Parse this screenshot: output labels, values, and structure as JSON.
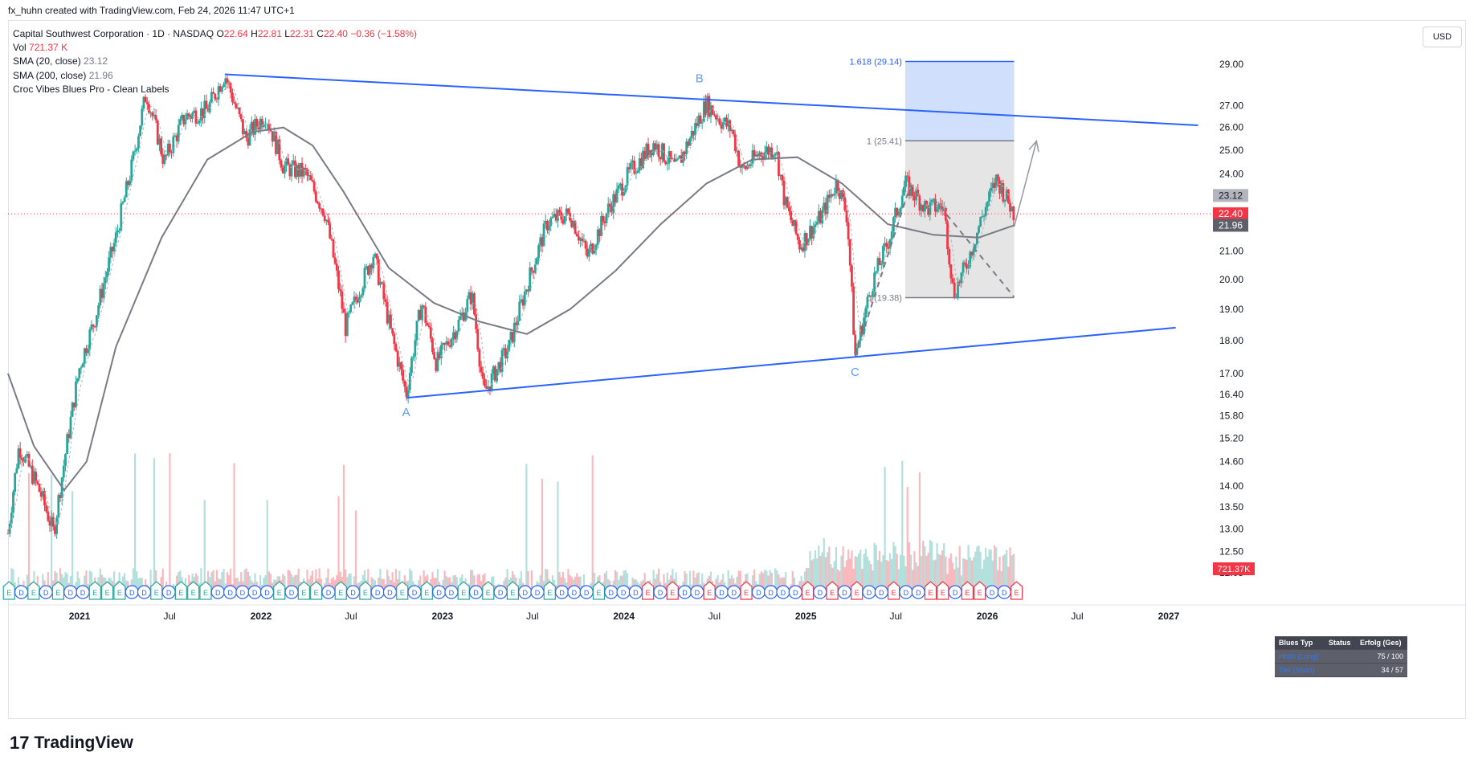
{
  "header": {
    "credit": "fx_huhn created with TradingView.com, Feb 24, 2026 11:47 UTC+1"
  },
  "legend": {
    "symbol": "Capital Southwest Corporation · 1D · NASDAQ",
    "o_label": "O",
    "o": "22.64",
    "h_label": "H",
    "h": "22.81",
    "l_label": "L",
    "l": "22.31",
    "c_label": "C",
    "c": "22.40",
    "change": "−0.36 (−1.58%)",
    "vol_label": "Vol",
    "vol": "721.37 K",
    "sma20_label": "SMA (20, close)",
    "sma20": "23.12",
    "sma200_label": "SMA (200, close)",
    "sma200": "21.96",
    "indicator": "Croc Vibes Blues Pro - Clean Labels"
  },
  "currency": "USD",
  "footer": {
    "logo_mark": "17",
    "logo_word": "TradingView"
  },
  "stats_table": {
    "headers": [
      "Blues Typ",
      "Status",
      "Erfolg (Ges)"
    ],
    "rows": [
      {
        "type": "Hoch (Long)",
        "status": "",
        "value": "75 / 100"
      },
      {
        "type": "Tief (Short)",
        "status": "",
        "value": "34 / 57"
      }
    ]
  },
  "colors": {
    "up": "#26a69a",
    "down": "#f23645",
    "trendline": "#2962ff",
    "sma": "#787b86",
    "fib_fill": "#bbd1fb",
    "box_fill": "#e0e0e0",
    "wave_label": "#5b9cf6"
  },
  "chart_data": {
    "type": "candlestick",
    "price_axis": {
      "scale": "log",
      "range": [
        12.0,
        31.5
      ],
      "ticks": [
        12.05,
        12.5,
        13.0,
        13.5,
        14.0,
        14.6,
        15.2,
        15.8,
        16.4,
        17.0,
        18.0,
        19.0,
        20.0,
        21.0,
        22.0,
        23.0,
        24.0,
        25.0,
        26.0,
        27.0,
        29.0
      ]
    },
    "price_tick_labels": [
      "12.05",
      "12.50",
      "13.00",
      "13.50",
      "14.00",
      "14.60",
      "15.20",
      "15.80",
      "16.40",
      "17.00",
      "18.00",
      "19.00",
      "20.00",
      "21.00",
      "22.00",
      "23.00",
      "24.00",
      "25.00",
      "26.00",
      "27.00",
      "29.00"
    ],
    "time_axis": {
      "labels": [
        "2021",
        "Jul",
        "2022",
        "Jul",
        "2023",
        "Jul",
        "2024",
        "Jul",
        "2025",
        "Jul",
        "2026",
        "Jul",
        "2027"
      ],
      "dates": [
        "2021-01-01",
        "2021-07-01",
        "2022-01-01",
        "2022-07-01",
        "2023-01-01",
        "2023-07-01",
        "2024-01-01",
        "2024-07-01",
        "2025-01-01",
        "2025-07-01",
        "2026-01-01",
        "2026-07-01",
        "2027-01-01"
      ],
      "range": [
        "2020-08-10",
        "2027-03-10"
      ]
    },
    "price_path": [
      [
        "2020-08-10",
        12.9
      ],
      [
        "2020-09-01",
        15.0
      ],
      [
        "2020-10-15",
        13.8
      ],
      [
        "2020-11-10",
        12.9
      ],
      [
        "2020-12-01",
        14.6
      ],
      [
        "2021-01-01",
        17.2
      ],
      [
        "2021-02-01",
        18.7
      ],
      [
        "2021-03-15",
        21.5
      ],
      [
        "2021-04-15",
        24.2
      ],
      [
        "2021-05-15",
        27.6
      ],
      [
        "2021-06-20",
        24.5
      ],
      [
        "2021-08-01",
        26.5
      ],
      [
        "2021-09-15",
        26.8
      ],
      [
        "2021-10-20",
        28.5
      ],
      [
        "2021-12-01",
        25.5
      ],
      [
        "2022-01-10",
        26.6
      ],
      [
        "2022-02-15",
        24.3
      ],
      [
        "2022-04-01",
        24.0
      ],
      [
        "2022-05-10",
        22.4
      ],
      [
        "2022-06-20",
        18.4
      ],
      [
        "2022-08-15",
        20.9
      ],
      [
        "2022-09-20",
        18.2
      ],
      [
        "2022-10-20",
        16.4
      ],
      [
        "2022-11-20",
        19.2
      ],
      [
        "2022-12-20",
        17.3
      ],
      [
        "2023-02-01",
        18.5
      ],
      [
        "2023-03-01",
        19.5
      ],
      [
        "2023-03-25",
        16.4
      ],
      [
        "2023-05-15",
        17.8
      ],
      [
        "2023-06-20",
        19.8
      ],
      [
        "2023-08-01",
        22.1
      ],
      [
        "2023-09-15",
        22.4
      ],
      [
        "2023-10-20",
        20.8
      ],
      [
        "2023-12-01",
        22.6
      ],
      [
        "2024-01-15",
        24.1
      ],
      [
        "2024-03-01",
        25.3
      ],
      [
        "2024-04-15",
        24.2
      ],
      [
        "2024-06-15",
        27.1
      ],
      [
        "2024-07-15",
        26.3
      ],
      [
        "2024-08-05",
        25.9
      ],
      [
        "2024-08-25",
        24.1
      ],
      [
        "2024-10-01",
        24.9
      ],
      [
        "2024-11-01",
        25.1
      ],
      [
        "2024-11-20",
        22.8
      ],
      [
        "2024-12-20",
        21.2
      ],
      [
        "2025-02-01",
        22.3
      ],
      [
        "2025-03-05",
        23.7
      ],
      [
        "2025-03-25",
        22.3
      ],
      [
        "2025-04-10",
        17.5
      ],
      [
        "2025-05-15",
        19.9
      ],
      [
        "2025-06-15",
        21.3
      ],
      [
        "2025-07-20",
        23.6
      ],
      [
        "2025-09-01",
        22.6
      ],
      [
        "2025-10-05",
        22.7
      ],
      [
        "2025-10-25",
        19.5
      ],
      [
        "2025-11-20",
        20.5
      ],
      [
        "2025-12-20",
        22.2
      ],
      [
        "2026-01-20",
        23.8
      ],
      [
        "2026-02-24",
        22.4
      ]
    ],
    "last_close": 22.4,
    "series": [
      {
        "name": "SMA (20, close)",
        "last": 23.12
      },
      {
        "name": "SMA (200, close)",
        "last": 21.96,
        "points": [
          [
            "2020-08-10",
            17.0
          ],
          [
            "2020-10-01",
            15.0
          ],
          [
            "2020-12-01",
            13.9
          ],
          [
            "2021-01-15",
            14.6
          ],
          [
            "2021-03-15",
            17.8
          ],
          [
            "2021-06-15",
            21.5
          ],
          [
            "2021-09-15",
            24.6
          ],
          [
            "2021-12-15",
            25.8
          ],
          [
            "2022-02-15",
            26.0
          ],
          [
            "2022-04-15",
            25.2
          ],
          [
            "2022-06-15",
            23.3
          ],
          [
            "2022-09-15",
            20.4
          ],
          [
            "2022-12-15",
            19.2
          ],
          [
            "2023-03-15",
            18.6
          ],
          [
            "2023-06-20",
            18.2
          ],
          [
            "2023-09-15",
            19.0
          ],
          [
            "2023-12-15",
            20.3
          ],
          [
            "2024-03-15",
            22.0
          ],
          [
            "2024-06-15",
            23.6
          ],
          [
            "2024-09-15",
            24.6
          ],
          [
            "2024-12-15",
            24.7
          ],
          [
            "2025-03-15",
            23.6
          ],
          [
            "2025-06-15",
            22.0
          ],
          [
            "2025-09-15",
            21.6
          ],
          [
            "2025-12-15",
            21.5
          ],
          [
            "2026-02-24",
            21.96
          ]
        ]
      }
    ],
    "volume_last": "721.37K",
    "price_labels": [
      {
        "value": 23.12,
        "label": "23.12",
        "color": "#b2b5be"
      },
      {
        "value": 22.4,
        "label": "22.40",
        "color": "#f23645"
      },
      {
        "value": 21.96,
        "label": "21.96",
        "color": "#5d606b"
      }
    ],
    "annotations": {
      "trendlines": [
        {
          "from": [
            "2021-10-20",
            28.5
          ],
          "to": [
            "2027-03-01",
            26.1
          ]
        },
        {
          "from": [
            "2022-10-20",
            16.3
          ],
          "to": [
            "2027-01-15",
            18.4
          ]
        }
      ],
      "waves": [
        {
          "label": "A",
          "date": "2022-10-20",
          "price": 15.9
        },
        {
          "label": "B",
          "date": "2024-06-01",
          "price": 28.3
        },
        {
          "label": "C",
          "date": "2025-04-10",
          "price": 17.05
        }
      ],
      "fib": {
        "from_date": "2025-07-20",
        "to_date": "2026-02-24",
        "levels": [
          {
            "label": "1.618 (29.14)",
            "price": 29.14
          },
          {
            "label": "1 (25.41)",
            "price": 25.41
          },
          {
            "label": "0 (19.38)",
            "price": 19.38
          }
        ]
      },
      "projection": {
        "from": [
          "2026-02-24",
          21.9
        ],
        "to": [
          "2026-04-10",
          25.4
        ]
      }
    },
    "event_markers": "E D E D E D D E E E D D E D E E E D D D D D E D E E D E D E D D E D E D D E D E D E D D E D D D E D D D E D E D D E D D E D D D D E D E D E D D E D D E E D E E D D E"
  }
}
